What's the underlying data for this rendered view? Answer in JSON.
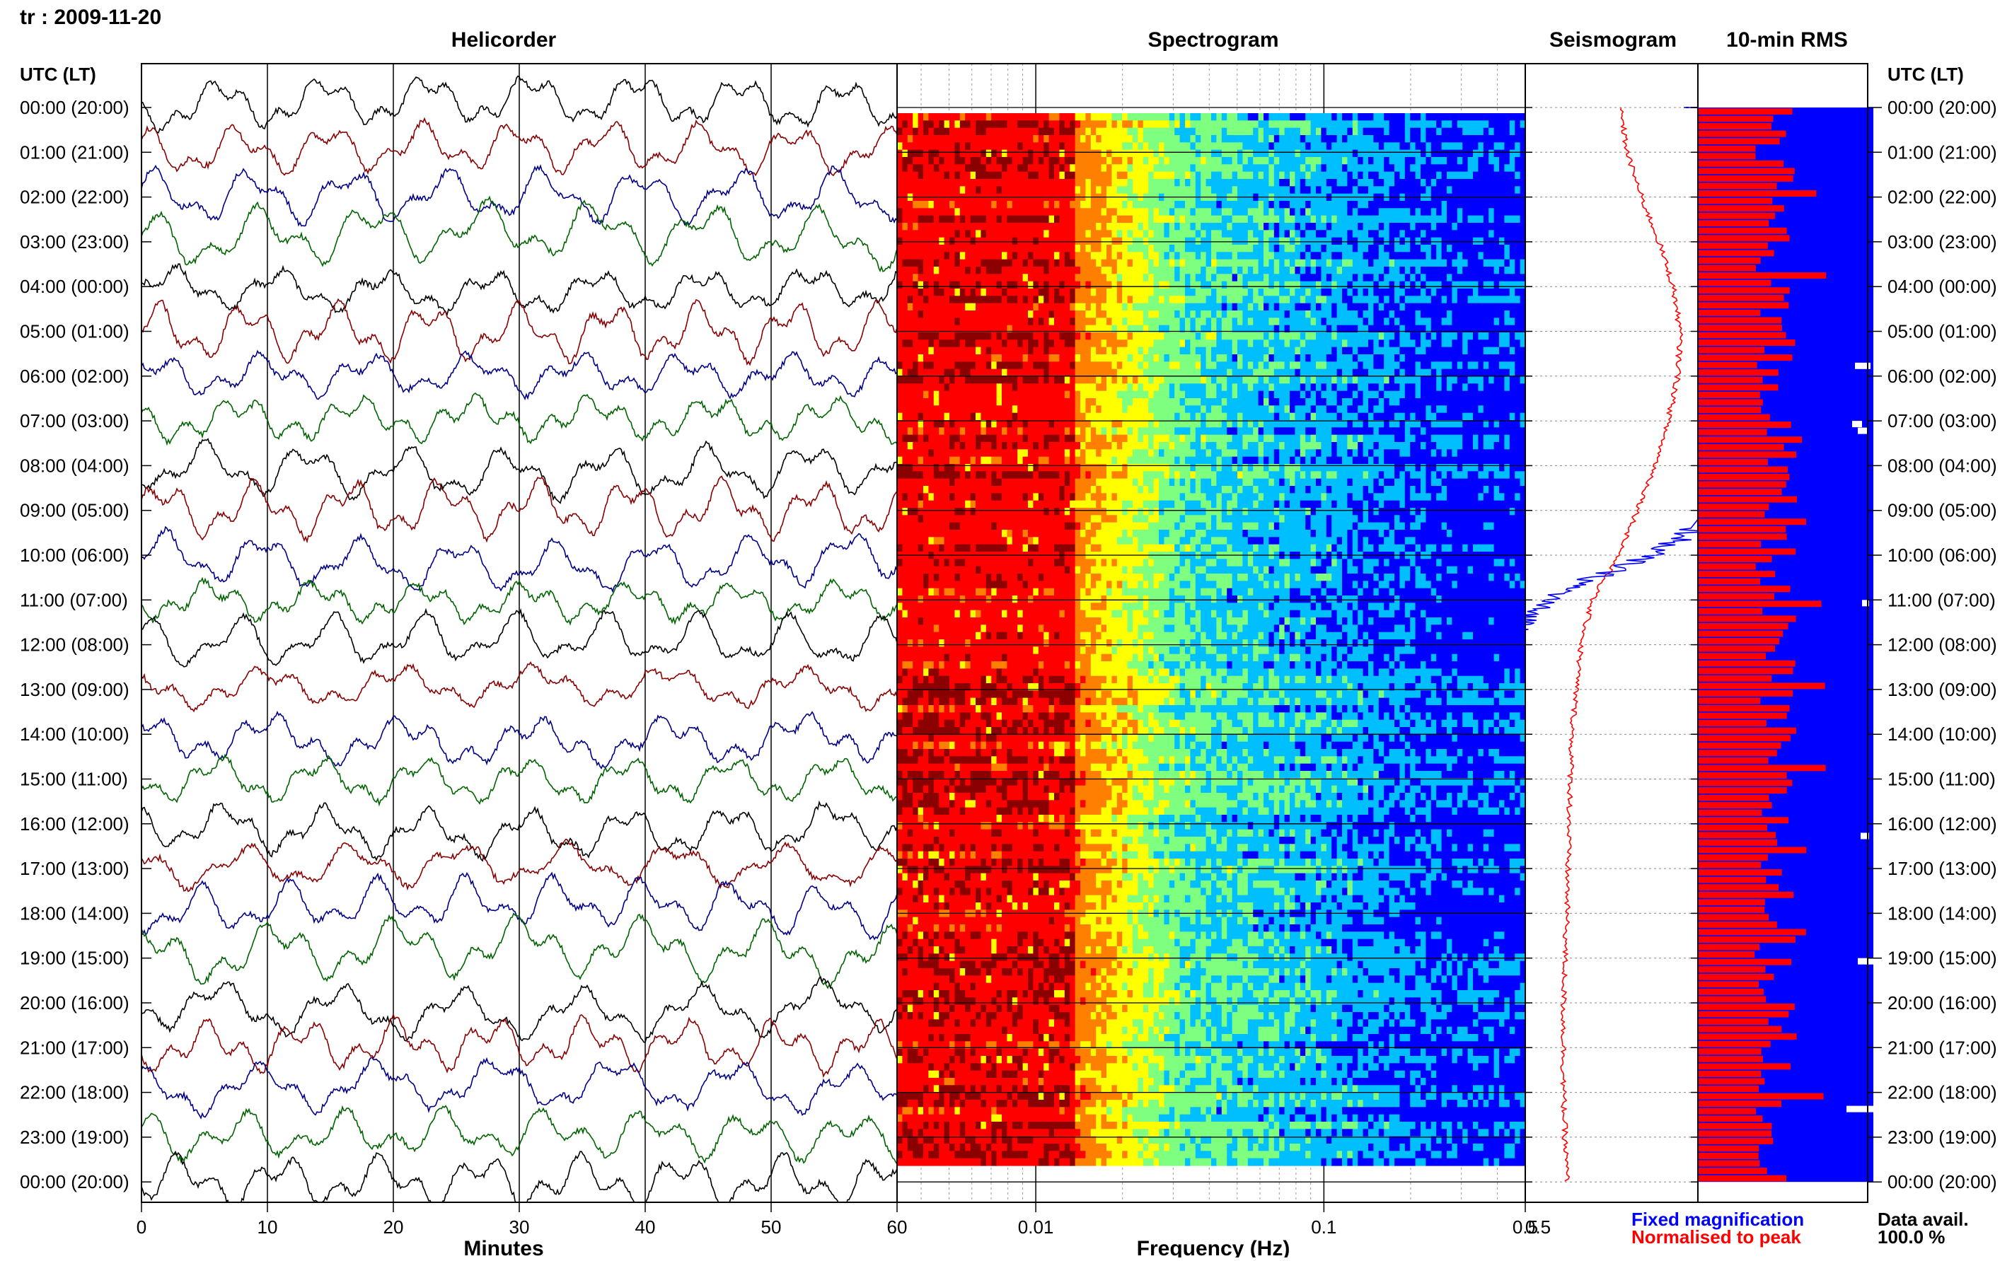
{
  "header": {
    "title": "tr : 2009-11-20"
  },
  "chart_data": {
    "type": "panel-figure",
    "panels": {
      "helicorder": {
        "title": "Helicorder",
        "xlabel": "Minutes",
        "xlim": [
          0,
          60
        ],
        "xticks": [
          "0",
          "10",
          "20",
          "30",
          "40",
          "50",
          "60"
        ],
        "trace_colors": [
          "#000000",
          "#8b0000",
          "#00008b",
          "#006400"
        ]
      },
      "spectrogram": {
        "title": "Spectrogram",
        "xlabel": "Frequency (Hz)",
        "xscale": "log",
        "xlim": [
          0.0033,
          0.5
        ],
        "xticks": [
          "0.01",
          "0.1",
          "0.5"
        ],
        "colormap": [
          "#8b0000",
          "#ff0000",
          "#ff7f00",
          "#ffff00",
          "#7fff7f",
          "#00bfff",
          "#0000ff"
        ]
      },
      "seismogram": {
        "title": "Seismogram",
        "xtick_left": "0.5",
        "legend": [
          {
            "label": "Fixed magnification",
            "color": "#0000ff"
          },
          {
            "label": "Normalised to peak",
            "color": "#ff0000"
          }
        ]
      },
      "rms": {
        "title": "10-min RMS",
        "bar_color": "#ff0000",
        "bg_color": "#0000ff"
      }
    },
    "time_axis": {
      "label": "UTC (LT)",
      "ticks": [
        "00:00 (20:00)",
        "01:00 (21:00)",
        "02:00 (22:00)",
        "03:00 (23:00)",
        "04:00 (00:00)",
        "05:00 (01:00)",
        "06:00 (02:00)",
        "07:00 (03:00)",
        "08:00 (04:00)",
        "09:00 (05:00)",
        "10:00 (06:00)",
        "11:00 (07:00)",
        "12:00 (08:00)",
        "13:00 (09:00)",
        "14:00 (10:00)",
        "15:00 (11:00)",
        "16:00 (12:00)",
        "17:00 (13:00)",
        "18:00 (14:00)",
        "19:00 (15:00)",
        "20:00 (16:00)",
        "21:00 (17:00)",
        "22:00 (18:00)",
        "23:00 (19:00)",
        "00:00 (20:00)"
      ]
    },
    "data_availability": {
      "label": "Data avail.",
      "value": "100.0 %"
    }
  }
}
